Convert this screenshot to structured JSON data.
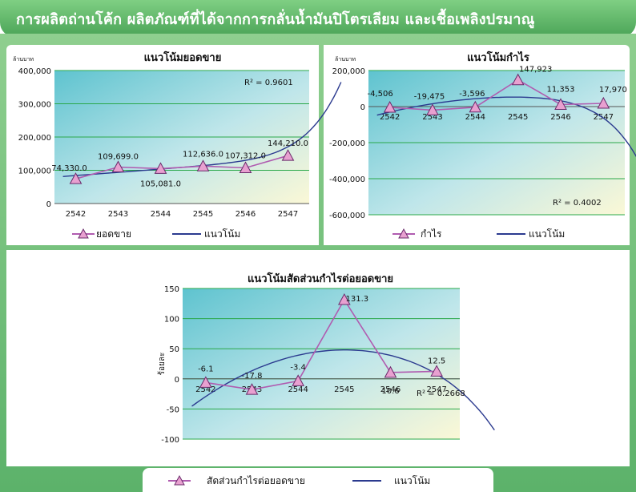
{
  "header": {
    "title": "การผลิตถ่านโค้ก ผลิตภัณฑ์ที่ได้จากการกลั่นน้ำมันปิโตรเลียม และเชื้อเพลิงปรมาณู",
    "bg_color": "#5cb26a"
  },
  "colors": {
    "series_line": "#b05cb0",
    "marker_fill": "#e8a0d0",
    "trend_line": "#2b3a8f",
    "gridline": "#2aa84a"
  },
  "chart_data": [
    {
      "type": "line",
      "title": "แนวโน้มยอดขาย",
      "unit_label": "ล้านบาท",
      "ylabel": "",
      "x": [
        "2542",
        "2543",
        "2544",
        "2545",
        "2546",
        "2547"
      ],
      "ylim": [
        0,
        400000
      ],
      "yticks": [
        0,
        100000,
        200000,
        300000,
        400000
      ],
      "ytick_labels": [
        "0",
        "100,000",
        "200,000",
        "300,000",
        "400,000"
      ],
      "grid": true,
      "series": [
        {
          "name": "ยอดขาย",
          "values": [
            74330.0,
            109699.0,
            105081.0,
            112636.0,
            107312.0,
            144210.0
          ],
          "data_labels": [
            "74,330.0",
            "109,699.0",
            "105,081.0",
            "112,636.0",
            "107,312.0",
            "144,210.0"
          ]
        },
        {
          "name": "แนวโน้ม",
          "trend": true
        }
      ],
      "trend_end_value": 365000,
      "r2_label": "R² = 0.9601",
      "legend": "bottom"
    },
    {
      "type": "line",
      "title": "แนวโน้มกำไร",
      "unit_label": "ล้านบาท",
      "ylabel": "",
      "x": [
        "2542",
        "2543",
        "2544",
        "2545",
        "2546",
        "2547"
      ],
      "ylim": [
        -600000,
        200000
      ],
      "yticks": [
        -600000,
        -400000,
        -200000,
        0,
        200000
      ],
      "ytick_labels": [
        "-600,000",
        "-400,000",
        "-200,000",
        "0",
        "200,000"
      ],
      "grid": true,
      "series": [
        {
          "name": "กำไร",
          "values": [
            -4506,
            -19475,
            -3596,
            147923,
            11353,
            17970
          ],
          "data_labels": [
            "-4,506",
            "-19,475",
            "-3,596",
            "147,923",
            "11,353",
            "17,970"
          ]
        },
        {
          "name": "แนวโน้ม",
          "trend": true
        }
      ],
      "trend_end_value": -540000,
      "r2_label": "R² = 0.4002",
      "legend": "bottom"
    },
    {
      "type": "line",
      "title": "แนวโน้มสัดส่วนกำไรต่อยอดขาย",
      "ylabel": "ร้อยละ",
      "x": [
        "2542",
        "2543",
        "2544",
        "2545",
        "2546",
        "2547"
      ],
      "ylim": [
        -100,
        150
      ],
      "yticks": [
        -100,
        -50,
        0,
        50,
        100,
        150
      ],
      "ytick_labels": [
        "-100",
        "-50",
        "0",
        "50",
        "100",
        "150"
      ],
      "grid": true,
      "series": [
        {
          "name": "สัดส่วนกำไรต่อยอดขาย",
          "values": [
            -6.1,
            -17.8,
            -3.4,
            131.3,
            10.6,
            12.5
          ],
          "data_labels": [
            "-6.1",
            "-17.8",
            "-3.4",
            "131.3",
            "10.6",
            "12.5"
          ]
        },
        {
          "name": "แนวโน้ม",
          "trend": true
        }
      ],
      "trend_end_value": -85,
      "r2_label": "R² = 0.2668",
      "legend": "bottom"
    }
  ]
}
